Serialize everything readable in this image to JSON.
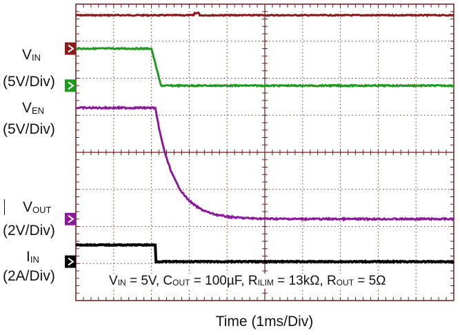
{
  "chart_data": {
    "type": "line",
    "title": "",
    "xlabel": "Time  (1ms/Div)",
    "x_divisions": 10,
    "y_divisions": 8,
    "grid": true,
    "conditions_text": {
      "parts": [
        {
          "t": "V"
        },
        {
          "sub": "IN"
        },
        {
          "t": " = 5V, C"
        },
        {
          "sub": "OUT"
        },
        {
          "t": " = 100µF, R"
        },
        {
          "sub": "ILIM"
        },
        {
          "t": " = 13kΩ, R"
        },
        {
          "sub": "OUT"
        },
        {
          "t": " = 5Ω"
        }
      ]
    },
    "series": [
      {
        "name": "VIN",
        "label_main": "V",
        "label_sub": "IN",
        "scale": "(5V/Div)",
        "color": "#8b1a1a",
        "marker_color": "#8b1a1a",
        "time_ms": [
          0,
          10
        ],
        "level_div": [
          7.7,
          7.7
        ],
        "bump_at_ms": 3.2
      },
      {
        "name": "VEN",
        "label_main": "V",
        "label_sub": "EN",
        "scale": "(5V/Div)",
        "color": "#1e9a1e",
        "marker_color": "#1e9a1e",
        "time_ms": [
          0,
          2.0,
          2.25,
          10
        ],
        "level_div": [
          6.8,
          6.8,
          5.8,
          5.8
        ]
      },
      {
        "name": "VOUT",
        "label_main": "V",
        "label_sub": "OUT",
        "scale": "(2V/Div)",
        "color": "#8a1a9a",
        "marker_color": "#8a1a9a",
        "step_ms": 2.1,
        "start_div": 5.2,
        "final_div": 2.2,
        "tau_ms": 0.5
      },
      {
        "name": "IIN",
        "label_main": "I",
        "label_sub": "IN",
        "scale": "(2A/Div)",
        "color": "#000000",
        "marker_color": "#000000",
        "time_ms": [
          0,
          2.1,
          2.1,
          10
        ],
        "level_div": [
          1.5,
          1.5,
          1.05,
          1.05
        ]
      }
    ]
  }
}
